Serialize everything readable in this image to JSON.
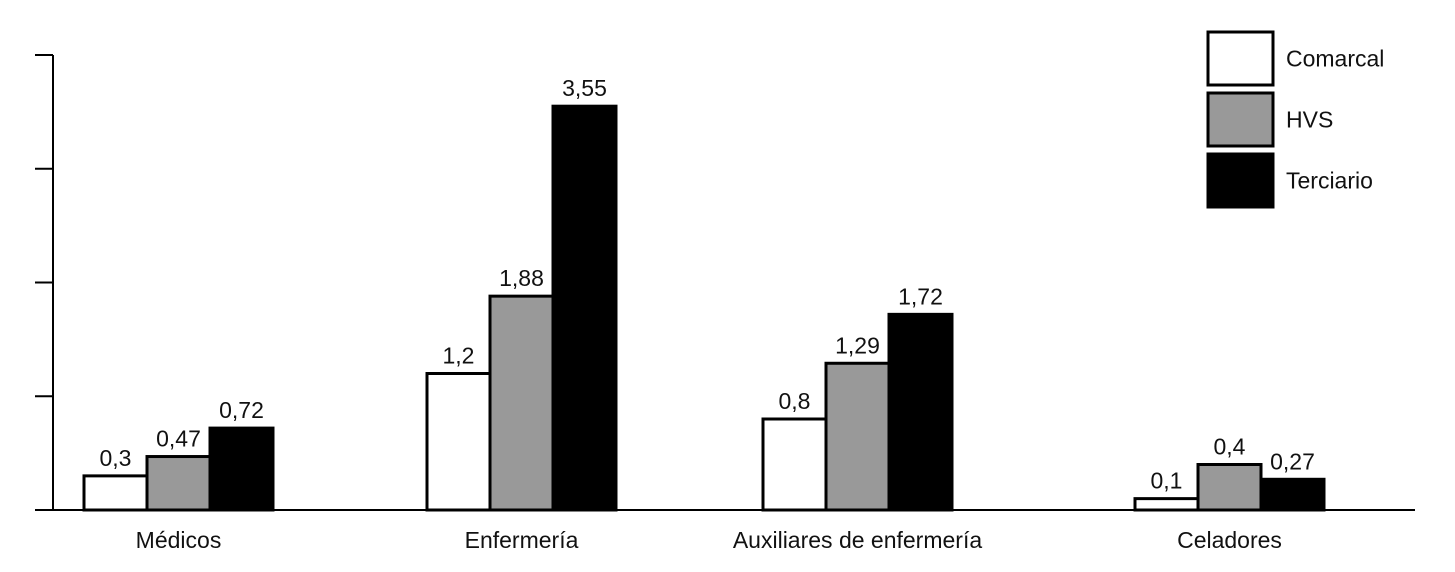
{
  "chart_data": {
    "type": "bar",
    "title": "",
    "xlabel": "",
    "ylabel": "",
    "ylim": [
      0,
      4
    ],
    "y_ticks": [
      0,
      1,
      2,
      3,
      4
    ],
    "y_tick_labels_shown": false,
    "grid": false,
    "legend_position": "top-right",
    "categories": [
      "Médicos",
      "Enfermería",
      "Auxiliares de enfermería",
      "Celadores"
    ],
    "series": [
      {
        "name": "Comarcal",
        "color": "#ffffff",
        "values": [
          0.3,
          1.2,
          0.8,
          0.1
        ],
        "labels": [
          "0,3",
          "1,2",
          "0,8",
          "0,1"
        ]
      },
      {
        "name": "HVS",
        "color": "#999999",
        "values": [
          0.47,
          1.88,
          1.29,
          0.4
        ],
        "labels": [
          "0,47",
          "1,88",
          "1,29",
          "0,4"
        ]
      },
      {
        "name": "Terciario",
        "color": "#000000",
        "values": [
          0.72,
          3.55,
          1.72,
          0.27
        ],
        "labels": [
          "0,72",
          "3,55",
          "1,72",
          "0,27"
        ]
      }
    ]
  }
}
